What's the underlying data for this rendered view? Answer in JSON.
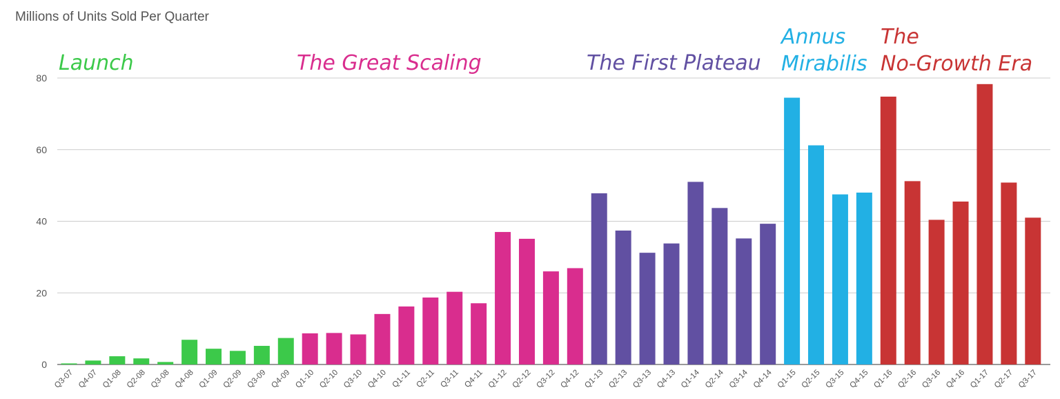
{
  "chart_data": {
    "type": "bar",
    "title": "Millions of Units Sold Per Quarter",
    "xlabel": "",
    "ylabel": "",
    "ylim": [
      0,
      80
    ],
    "yticks": [
      0,
      20,
      40,
      60,
      80
    ],
    "grid": true,
    "categories": [
      "Q3-07",
      "Q4-07",
      "Q1-08",
      "Q2-08",
      "Q3-08",
      "Q4-08",
      "Q1-09",
      "Q2-09",
      "Q3-09",
      "Q4-09",
      "Q1-10",
      "Q2-10",
      "Q3-10",
      "Q4-10",
      "Q1-11",
      "Q2-11",
      "Q3-11",
      "Q4-11",
      "Q1-12",
      "Q2-12",
      "Q3-12",
      "Q4-12",
      "Q1-13",
      "Q2-13",
      "Q3-13",
      "Q4-13",
      "Q1-14",
      "Q2-14",
      "Q3-14",
      "Q4-14",
      "Q1-15",
      "Q2-15",
      "Q3-15",
      "Q4-15",
      "Q1-16",
      "Q2-16",
      "Q3-16",
      "Q4-16",
      "Q1-17",
      "Q2-17",
      "Q3-17"
    ],
    "values": [
      0.3,
      1.1,
      2.3,
      1.7,
      0.7,
      6.9,
      4.4,
      3.8,
      5.2,
      7.4,
      8.7,
      8.8,
      8.4,
      14.1,
      16.2,
      18.7,
      20.3,
      17.1,
      37.0,
      35.1,
      26.0,
      26.9,
      47.8,
      37.4,
      31.2,
      33.8,
      51.0,
      43.7,
      35.2,
      39.3,
      74.5,
      61.2,
      47.5,
      48.0,
      74.8,
      51.2,
      40.4,
      45.5,
      78.3,
      50.8,
      41.0
    ],
    "eras": [
      {
        "name": "Launch",
        "lines": [
          "Launch"
        ],
        "color": "#3cc94a",
        "start": 0,
        "end": 9
      },
      {
        "name": "The Great Scaling",
        "lines": [
          "The Great Scaling"
        ],
        "color": "#d92d8e",
        "start": 10,
        "end": 21
      },
      {
        "name": "The First Plateau",
        "lines": [
          "The First Plateau"
        ],
        "color": "#6150a2",
        "start": 22,
        "end": 29
      },
      {
        "name": "Annus Mirabilis",
        "lines": [
          "Annus",
          "Mirabilis"
        ],
        "color": "#22b0e4",
        "start": 30,
        "end": 33
      },
      {
        "name": "The No-Growth Era",
        "lines": [
          "The",
          "No-Growth Era"
        ],
        "color": "#c83434",
        "start": 34,
        "end": 40
      }
    ]
  }
}
